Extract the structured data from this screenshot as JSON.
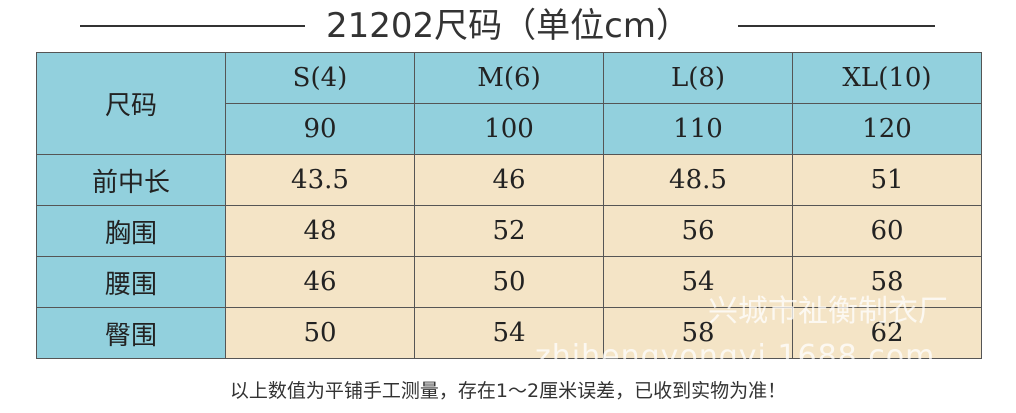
{
  "title": "21202尺码（单位cm）",
  "table": {
    "corner": "尺码",
    "sizes": [
      "S(4)",
      "M(6)",
      "L(8)",
      "XL(10)"
    ],
    "heights": [
      "90",
      "100",
      "110",
      "120"
    ],
    "rows": [
      {
        "label": "前中长",
        "values": [
          "43.5",
          "46",
          "48.5",
          "51"
        ]
      },
      {
        "label": "胸围",
        "values": [
          "48",
          "52",
          "56",
          "60"
        ]
      },
      {
        "label": "腰围",
        "values": [
          "46",
          "50",
          "54",
          "58"
        ]
      },
      {
        "label": "臀围",
        "values": [
          "50",
          "54",
          "58",
          "62"
        ]
      }
    ]
  },
  "watermark": {
    "company": "兴城市祉衡制衣厂",
    "site": "zhihengyongyi.1688.com"
  },
  "note": "以上数值为平铺手工测量，存在1～2厘米误差，已收到实物为准！"
}
